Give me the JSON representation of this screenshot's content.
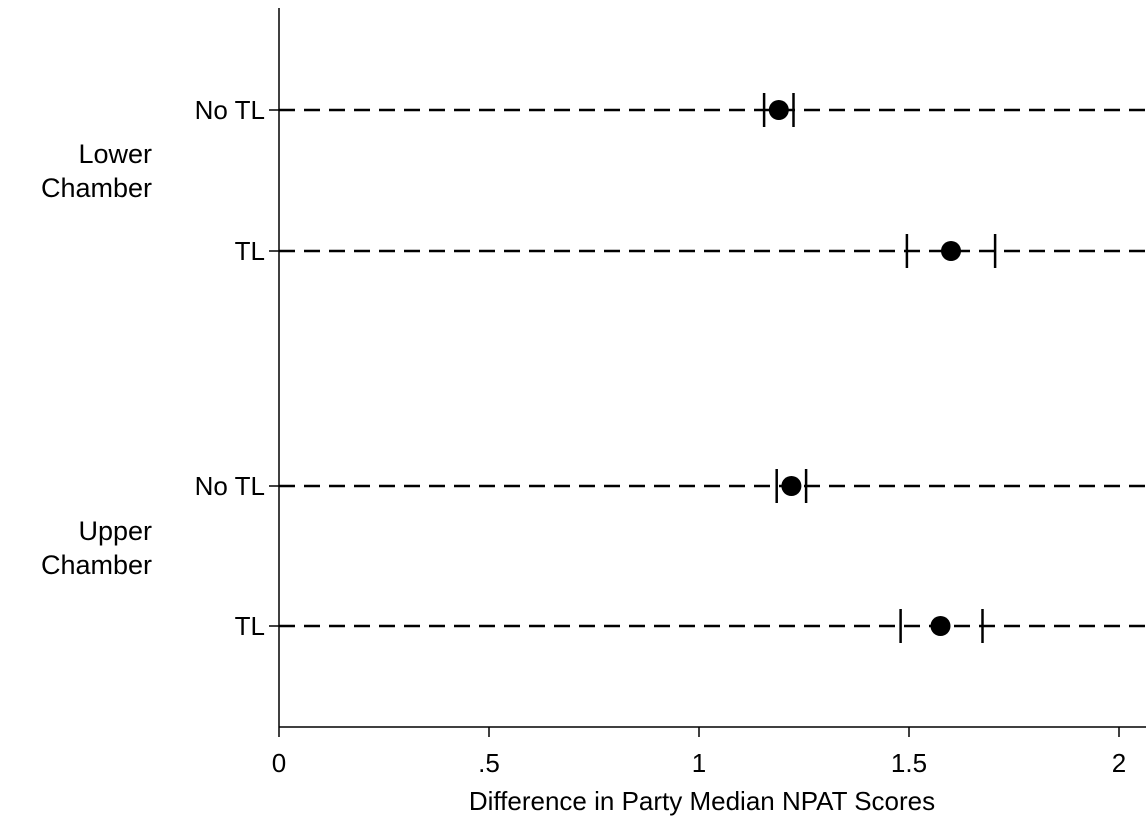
{
  "chart_data": {
    "type": "scatter",
    "title": "",
    "xlabel": "Difference in Party Median NPAT Scores",
    "ylabel": "",
    "xlim": [
      0,
      2.05
    ],
    "x_ticks": [
      {
        "value": 0,
        "label": "0"
      },
      {
        "value": 0.5,
        "label": ".5"
      },
      {
        "value": 1,
        "label": "1"
      },
      {
        "value": 1.5,
        "label": "1.5"
      },
      {
        "value": 2,
        "label": "2"
      }
    ],
    "grid": false,
    "groups": [
      {
        "label_lines": [
          "Lower",
          "Chamber"
        ]
      },
      {
        "label_lines": [
          "Upper",
          "Chamber"
        ]
      }
    ],
    "rows": [
      {
        "group": 0,
        "label": "No TL",
        "estimate": 1.19,
        "ci_low": 1.155,
        "ci_high": 1.225
      },
      {
        "group": 0,
        "label": "TL",
        "estimate": 1.6,
        "ci_low": 1.495,
        "ci_high": 1.705
      },
      {
        "group": 1,
        "label": "No TL",
        "estimate": 1.22,
        "ci_low": 1.185,
        "ci_high": 1.255
      },
      {
        "group": 1,
        "label": "TL",
        "estimate": 1.575,
        "ci_low": 1.48,
        "ci_high": 1.675
      }
    ],
    "point_color": "#000000"
  }
}
